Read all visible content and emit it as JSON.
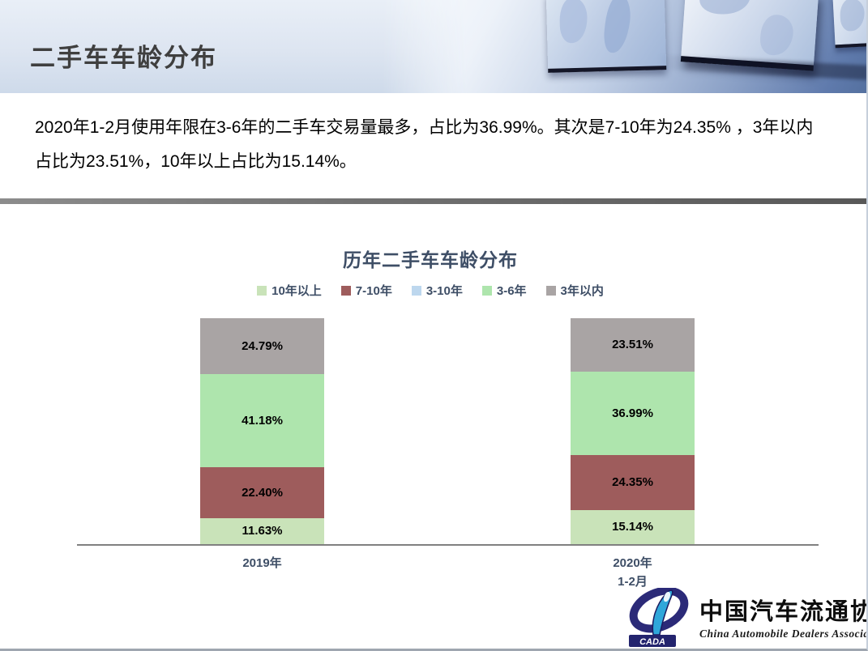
{
  "page": {
    "title": "二手车车龄分布",
    "summary": "2020年1-2月使用年限在3-6年的二手车交易量最多，占比为36.99%。其次是7-10年为24.35% ，3年以内占比为23.51%，10年以上占比为15.14%。"
  },
  "chart_data": {
    "type": "bar",
    "subtype": "stacked-percent-column",
    "title": "历年二手车车龄分布",
    "categories": [
      "2019年",
      "2020年1-2月"
    ],
    "category_lines": [
      [
        "2019年"
      ],
      [
        "2020年",
        "1-2月"
      ]
    ],
    "series": [
      {
        "name": "10年以上",
        "color": "#C9E3B9",
        "values": [
          11.63,
          15.14
        ]
      },
      {
        "name": "7-10年",
        "color": "#9E5C5C",
        "values": [
          22.4,
          24.35
        ]
      },
      {
        "name": "3-10年",
        "color": "#BDD7EE",
        "values": [
          null,
          null
        ]
      },
      {
        "name": "3-6年",
        "color": "#AEE5AD",
        "values": [
          41.18,
          36.99
        ]
      },
      {
        "name": "3年以内",
        "color": "#A9A4A4",
        "values": [
          24.79,
          23.51
        ]
      }
    ],
    "stack_order_top_to_bottom": [
      "3年以内",
      "3-6年",
      "7-10年",
      "10年以上"
    ],
    "value_suffix": "%",
    "value_decimals": 2,
    "ylim": [
      0,
      100
    ],
    "grid": false,
    "legend_position": "top",
    "label_color": "#000000",
    "axis_text_color": "#3E4E66"
  },
  "logo": {
    "acronym": "CADA",
    "name_zh": "中国汽车流通协会",
    "name_en": "China Automobile Dealers Association"
  }
}
